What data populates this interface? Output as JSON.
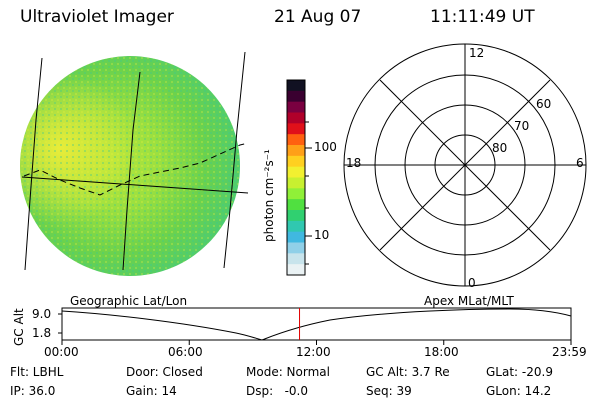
{
  "header": {
    "instrument": "Ultraviolet Imager",
    "date": "21 Aug 07",
    "time": "11:11:49 UT"
  },
  "colorbar": {
    "unit_label": "photon cm⁻²s⁻¹",
    "ticks": [
      "100",
      "10"
    ],
    "colors": [
      "#111122",
      "#3a0030",
      "#7a0040",
      "#b0002a",
      "#e0101a",
      "#ff6010",
      "#ffa018",
      "#ffd020",
      "#f2f030",
      "#c8f030",
      "#90f038",
      "#50e040",
      "#30d070",
      "#30c8b0",
      "#40b8e0",
      "#90d0e8",
      "#c8e4ec",
      "#eaf2f4"
    ]
  },
  "polar_plot": {
    "mlt_labels": {
      "top": "12",
      "right": "6",
      "bottom": "0",
      "left": "18"
    },
    "lat_labels": [
      "60",
      "70",
      "80"
    ]
  },
  "timeline": {
    "left_title": "Geographic Lat/Lon",
    "right_title": "Apex MLat/MLT",
    "y_axis_label": "GC Alt",
    "y_ticks": [
      "9.0",
      "1.8"
    ],
    "x_ticks": [
      "00:00",
      "06:00",
      "12:00",
      "18:00",
      "23:59"
    ],
    "current_time_marker_hours": 11.2,
    "marker_color": "#e00000"
  },
  "info": {
    "flt": "Flt: LBHL",
    "door": "Door: Closed",
    "mode": "Mode: Normal",
    "gc_alt": "GC Alt: 3.7 Re",
    "glat": "GLat: -20.9",
    "ip": "IP: 36.0",
    "gain": "Gain: 14",
    "dsp": "Dsp:   -0.0",
    "seq": "Seq: 39",
    "glon": "GLon: 14.2"
  }
}
